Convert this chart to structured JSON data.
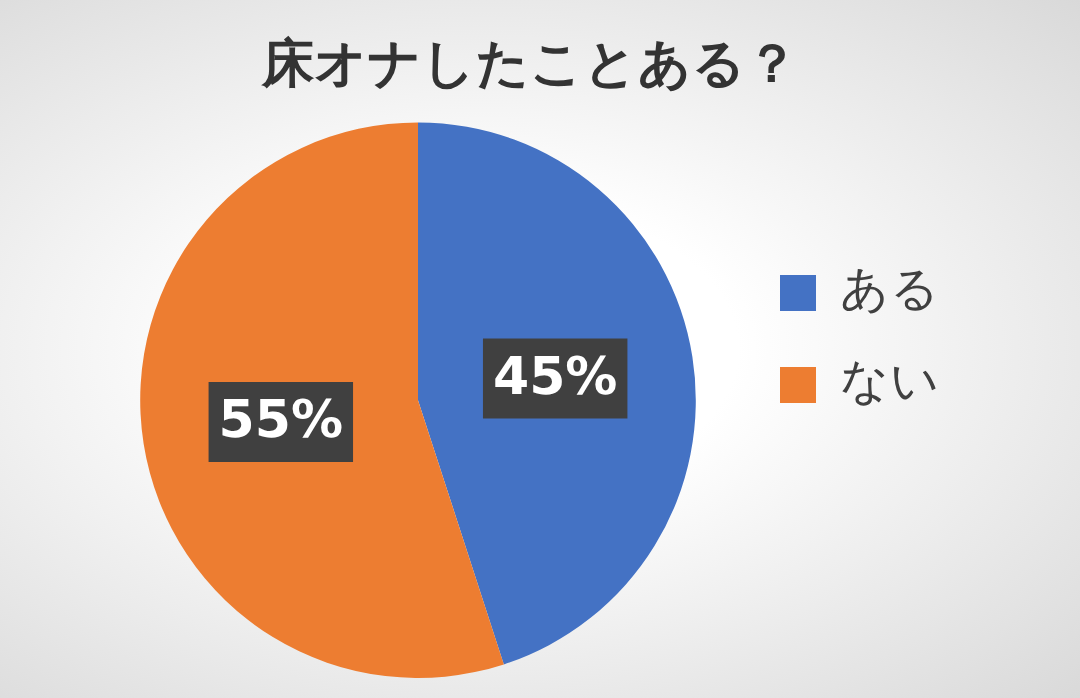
{
  "chart_data": {
    "type": "pie",
    "title": "床オナしたことある？",
    "categories": [
      "ある",
      "ない"
    ],
    "values": [
      45,
      55
    ],
    "colors": [
      "#4472c4",
      "#ed7d31"
    ],
    "value_labels": [
      "45%",
      "55%"
    ],
    "legend": "right"
  }
}
